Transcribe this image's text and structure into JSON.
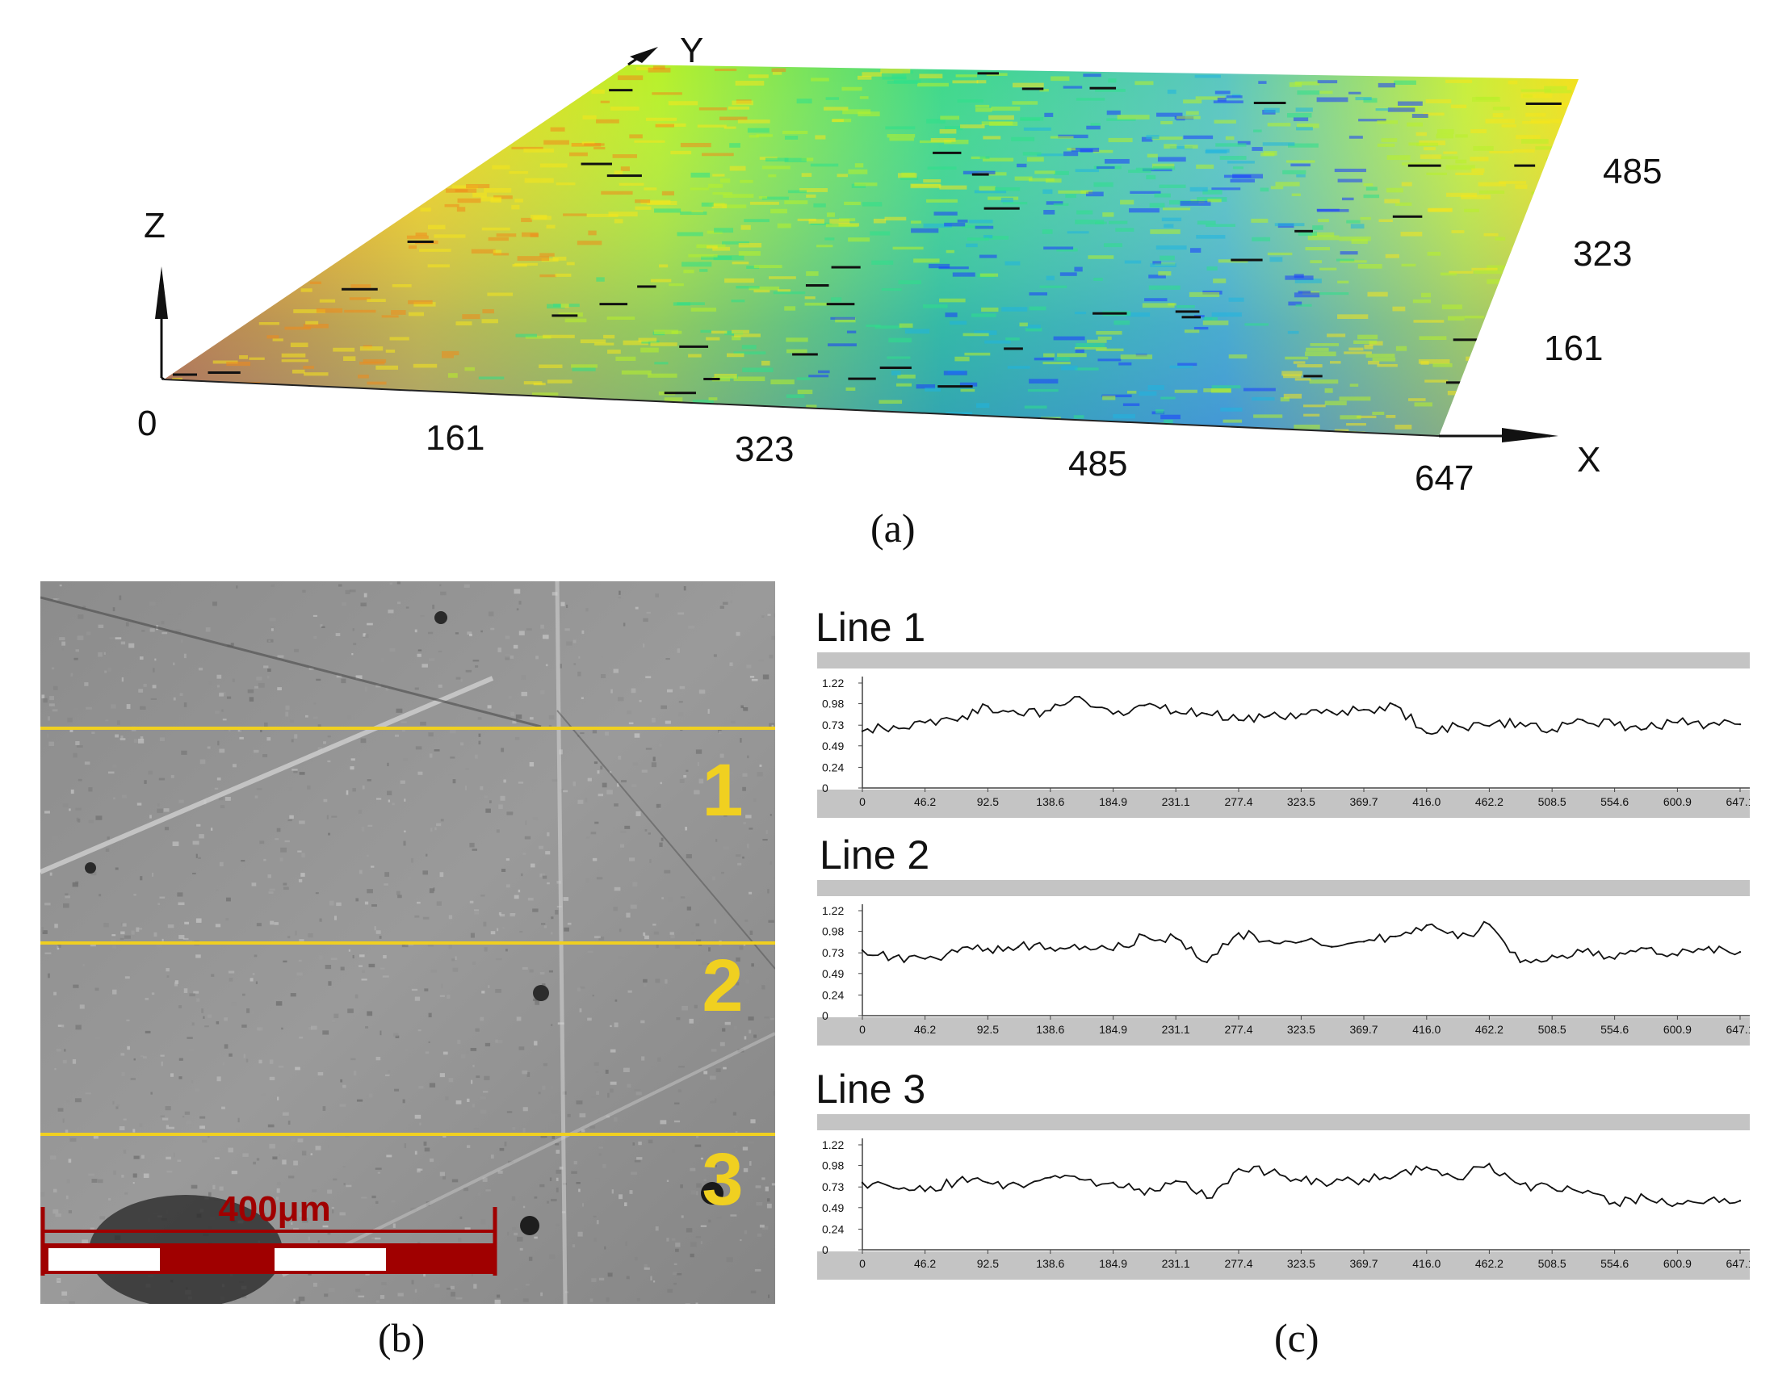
{
  "figure": {
    "panel_a": {
      "caption": "(a)",
      "z_label": "Z",
      "y_label": "Y",
      "x_label": "X",
      "origin_label": "0",
      "x_ticks": [
        "161",
        "323",
        "485",
        "647"
      ],
      "y_ticks": [
        "161",
        "323",
        "485"
      ],
      "colormap": [
        "#1a3cff",
        "#1fb5e0",
        "#2ee08a",
        "#b8f02a",
        "#f5e51c",
        "#f08a1a"
      ]
    },
    "panel_b": {
      "caption": "(b)",
      "line_numbers": [
        "1",
        "2",
        "3"
      ],
      "scale_bar_label": "400μm",
      "line_color": "#f0d020",
      "scale_color": "#a00000"
    },
    "panel_c": {
      "caption": "(c)",
      "profiles": [
        {
          "title": "Line 1"
        },
        {
          "title": "Line 2"
        },
        {
          "title": "Line 3"
        }
      ],
      "y_ticks": [
        "1.22",
        "0.98",
        "0.73",
        "0.49",
        "0.24",
        "0"
      ],
      "x_ticks": [
        "0",
        "46.2",
        "92.5",
        "138.6",
        "184.9",
        "231.1",
        "277.4",
        "323.5",
        "369.7",
        "416.0",
        "462.2",
        "508.5",
        "554.6",
        "600.9",
        "647.1"
      ]
    }
  },
  "chart_data": [
    {
      "type": "line",
      "title": "Line 1",
      "x": [
        0,
        23,
        46.2,
        70,
        92.5,
        115,
        138.6,
        160,
        184.9,
        208,
        231.1,
        254,
        277.4,
        300,
        323.5,
        346,
        369.7,
        393,
        416.0,
        439,
        462.2,
        485,
        508.5,
        531,
        554.6,
        578,
        600.9,
        624,
        647.1
      ],
      "values": [
        0.66,
        0.72,
        0.76,
        0.78,
        0.95,
        0.86,
        0.9,
        1.06,
        0.86,
        0.96,
        0.89,
        0.86,
        0.79,
        0.84,
        0.86,
        0.88,
        0.91,
        0.96,
        0.64,
        0.72,
        0.72,
        0.76,
        0.68,
        0.79,
        0.73,
        0.69,
        0.76,
        0.74,
        0.74
      ],
      "ylim": [
        0,
        1.22
      ],
      "xlim": [
        0,
        647.1
      ]
    },
    {
      "type": "line",
      "title": "Line 2",
      "x": [
        0,
        23,
        46.2,
        70,
        92.5,
        115,
        138.6,
        160,
        184.9,
        208,
        231.1,
        254,
        277.4,
        300,
        323.5,
        346,
        369.7,
        393,
        416.0,
        439,
        462.2,
        485,
        508.5,
        531,
        554.6,
        578,
        600.9,
        624,
        647.1
      ],
      "values": [
        0.76,
        0.68,
        0.66,
        0.74,
        0.78,
        0.8,
        0.79,
        0.77,
        0.76,
        0.93,
        0.9,
        0.62,
        0.96,
        0.87,
        0.86,
        0.8,
        0.86,
        0.92,
        1.05,
        0.9,
        1.06,
        0.62,
        0.7,
        0.74,
        0.66,
        0.78,
        0.7,
        0.8,
        0.74
      ],
      "ylim": [
        0,
        1.22
      ],
      "xlim": [
        0,
        647.1
      ]
    },
    {
      "type": "line",
      "title": "Line 3",
      "x": [
        0,
        23,
        46.2,
        70,
        92.5,
        115,
        138.6,
        160,
        184.9,
        208,
        231.1,
        254,
        277.4,
        300,
        323.5,
        346,
        369.7,
        393,
        416.0,
        439,
        462.2,
        485,
        508.5,
        531,
        554.6,
        578,
        600.9,
        624,
        647.1
      ],
      "values": [
        0.78,
        0.72,
        0.68,
        0.8,
        0.78,
        0.76,
        0.84,
        0.82,
        0.78,
        0.64,
        0.8,
        0.6,
        0.94,
        0.9,
        0.8,
        0.77,
        0.82,
        0.86,
        0.96,
        0.82,
        1.0,
        0.76,
        0.72,
        0.66,
        0.55,
        0.6,
        0.54,
        0.58,
        0.57
      ],
      "ylim": [
        0,
        1.22
      ],
      "xlim": [
        0,
        647.1
      ]
    }
  ]
}
